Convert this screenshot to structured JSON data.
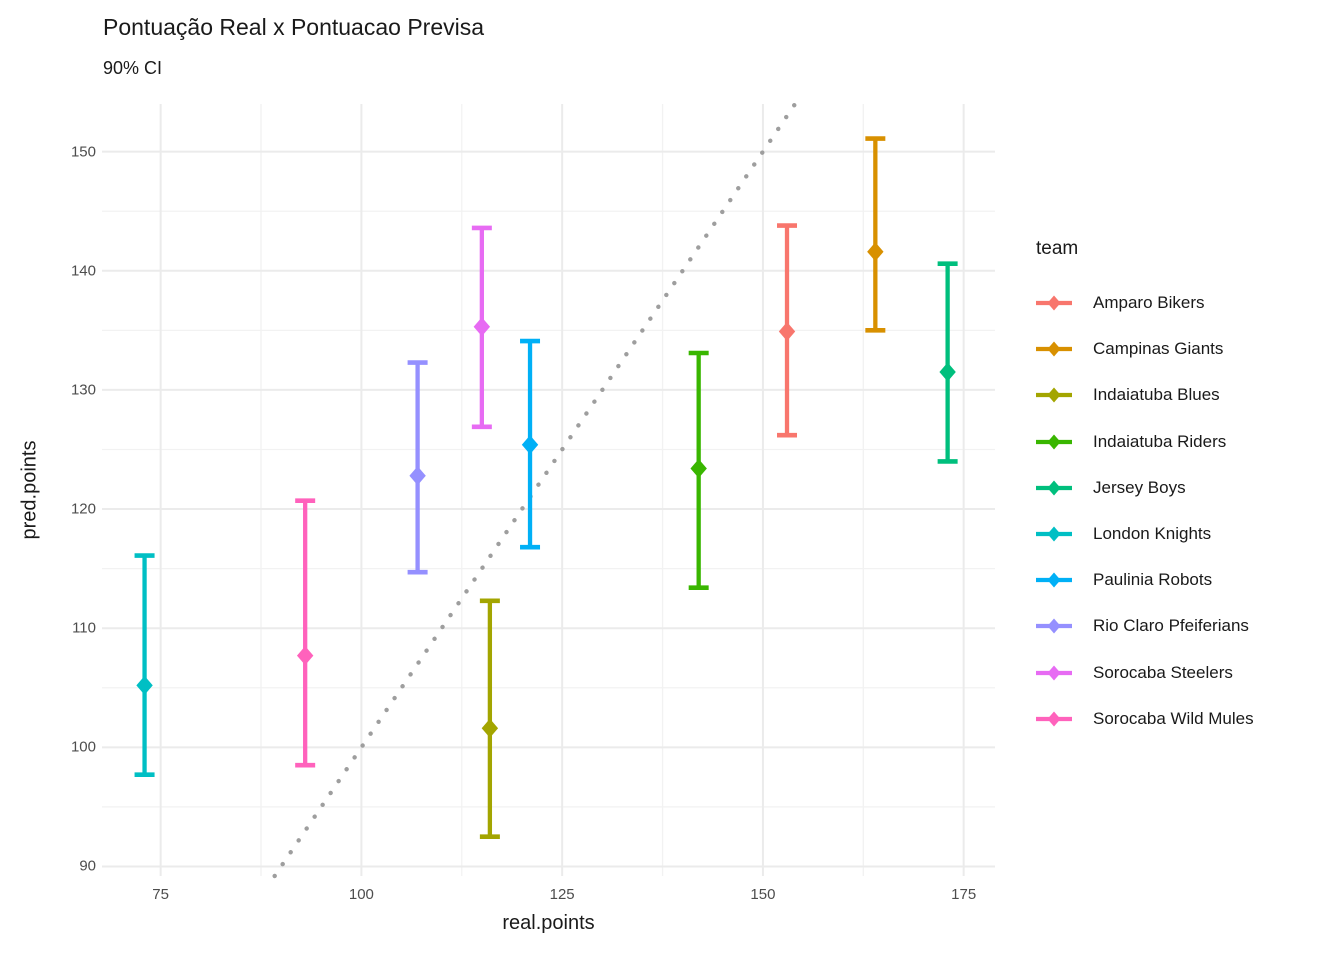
{
  "chart_data": {
    "type": "scatter",
    "title": "Pontuação Real x Pontuacao Previsa",
    "subtitle": "90% CI",
    "xlabel": "real.points",
    "ylabel": "pred.points",
    "legend_title": "team",
    "legend_position": "right",
    "grid": true,
    "background_color": "#ffffff",
    "grid_major_color": "#ebebeb",
    "grid_minor_color": "#f2f2f2",
    "tick_label_color": "#4d4d4d",
    "xlim": [
      67.7,
      178.9
    ],
    "ylim": [
      89.2,
      154.0
    ],
    "x_ticks": [
      75,
      100,
      125,
      150,
      175
    ],
    "y_ticks": [
      90,
      100,
      110,
      120,
      130,
      140,
      150
    ],
    "x_minor_ticks": [
      87.5,
      112.5,
      137.5,
      162.5
    ],
    "y_minor_ticks": [
      95,
      105,
      115,
      125,
      135,
      145
    ],
    "identity_line": {
      "slope": 1,
      "intercept": 0,
      "linetype": "dotted",
      "color": "#9e9e9e"
    },
    "series": [
      {
        "name": "Amparo Bikers",
        "color": "#F8766D",
        "x": 153,
        "y": 134.9,
        "ymin": 126.2,
        "ymax": 143.8
      },
      {
        "name": "Campinas Giants",
        "color": "#D89000",
        "x": 164,
        "y": 141.6,
        "ymin": 135.0,
        "ymax": 151.1
      },
      {
        "name": "Indaiatuba Blues",
        "color": "#A3A500",
        "x": 116,
        "y": 101.6,
        "ymin": 92.5,
        "ymax": 112.3
      },
      {
        "name": "Indaiatuba Riders",
        "color": "#39B600",
        "x": 142,
        "y": 123.4,
        "ymin": 113.4,
        "ymax": 133.1
      },
      {
        "name": "Jersey Boys",
        "color": "#00BF7D",
        "x": 173,
        "y": 131.5,
        "ymin": 124.0,
        "ymax": 140.6
      },
      {
        "name": "London Knights",
        "color": "#00BFC4",
        "x": 73,
        "y": 105.2,
        "ymin": 97.7,
        "ymax": 116.1
      },
      {
        "name": "Paulinia Robots",
        "color": "#00B0F6",
        "x": 121,
        "y": 125.4,
        "ymin": 116.8,
        "ymax": 134.1
      },
      {
        "name": "Rio Claro Pfeiferians",
        "color": "#9590FF",
        "x": 107,
        "y": 122.8,
        "ymin": 114.7,
        "ymax": 132.3
      },
      {
        "name": "Sorocaba Steelers",
        "color": "#E76BF3",
        "x": 115,
        "y": 135.3,
        "ymin": 126.9,
        "ymax": 143.6
      },
      {
        "name": "Sorocaba Wild Mules",
        "color": "#FF62BC",
        "x": 93,
        "y": 107.7,
        "ymin": 98.5,
        "ymax": 120.7
      }
    ]
  }
}
